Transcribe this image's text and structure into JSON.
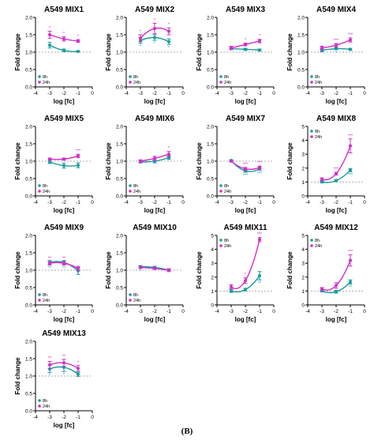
{
  "figure_label": "(B)",
  "colors": {
    "s8h": "#1a9c9c",
    "s24h": "#d12fc8",
    "ref": "#999999"
  },
  "chart_data": [
    {
      "type": "line",
      "title": "A549 MIX1",
      "xlabel": "log [fc]",
      "ylabel": "Fold change",
      "xlim": [
        -4,
        0
      ],
      "ylim": [
        0,
        2.0
      ],
      "xticks": [
        -4,
        -3,
        -2,
        -1,
        0
      ],
      "yticks": [
        0.0,
        0.5,
        1.0,
        1.5,
        2.0
      ],
      "ytick_labels": [
        "0.0",
        "0.5",
        "1.0",
        "1.5",
        "2.0"
      ],
      "legend_position": "bottom-left",
      "ref_line": 1,
      "series": [
        {
          "name": "8h",
          "x": [
            -3,
            -2,
            -1
          ],
          "y": [
            1.2,
            1.05,
            1.02
          ],
          "err": [
            0.08,
            0.04,
            0.02
          ],
          "sig": [
            "",
            "",
            ""
          ]
        },
        {
          "name": "24h",
          "x": [
            -3,
            -2,
            -1
          ],
          "y": [
            1.5,
            1.38,
            1.32
          ],
          "err": [
            0.1,
            0.06,
            0.04
          ],
          "sig": [
            "*",
            "*",
            "*"
          ]
        }
      ]
    },
    {
      "type": "line",
      "title": "A549 MIX2",
      "xlabel": "log [fc]",
      "ylabel": "Fold change",
      "xlim": [
        -4,
        0
      ],
      "ylim": [
        0,
        2.0
      ],
      "xticks": [
        -4,
        -3,
        -2,
        -1,
        0
      ],
      "yticks": [
        0.0,
        0.5,
        1.0,
        1.5,
        2.0
      ],
      "ytick_labels": [
        "0.0",
        "0.5",
        "1.0",
        "1.5",
        "2.0"
      ],
      "legend_position": "bottom-left",
      "ref_line": 1,
      "series": [
        {
          "name": "8h",
          "x": [
            -3,
            -2,
            -1
          ],
          "y": [
            1.33,
            1.42,
            1.3
          ],
          "err": [
            0.08,
            0.08,
            0.08
          ],
          "sig": [
            "*",
            "*",
            "*"
          ]
        },
        {
          "name": "24h",
          "x": [
            -3,
            -2,
            -1
          ],
          "y": [
            1.4,
            1.68,
            1.6
          ],
          "err": [
            0.1,
            0.15,
            0.1
          ],
          "sig": [
            "*",
            "*",
            "*"
          ]
        }
      ]
    },
    {
      "type": "line",
      "title": "A549 MIX3",
      "xlabel": "log [fc]",
      "ylabel": "Fold change",
      "xlim": [
        -4,
        0
      ],
      "ylim": [
        0,
        2.0
      ],
      "xticks": [
        -4,
        -3,
        -2,
        -1,
        0
      ],
      "yticks": [
        0.0,
        0.5,
        1.0,
        1.5,
        2.0
      ],
      "ytick_labels": [
        "0.0",
        "0.5",
        "1.0",
        "1.5",
        "2.0"
      ],
      "legend_position": "bottom-left",
      "ref_line": 1,
      "series": [
        {
          "name": "8h",
          "x": [
            -3,
            -2,
            -1
          ],
          "y": [
            1.1,
            1.08,
            1.06
          ],
          "err": [
            0.03,
            0.03,
            0.03
          ],
          "sig": [
            "",
            "",
            ""
          ]
        },
        {
          "name": "24h",
          "x": [
            -3,
            -2,
            -1
          ],
          "y": [
            1.12,
            1.22,
            1.32
          ],
          "err": [
            0.05,
            0.04,
            0.05
          ],
          "sig": [
            "",
            "*",
            "*"
          ]
        }
      ]
    },
    {
      "type": "line",
      "title": "A549 MIX4",
      "xlabel": "log [fc]",
      "ylabel": "Fold change",
      "xlim": [
        -4,
        0
      ],
      "ylim": [
        0,
        2.0
      ],
      "xticks": [
        -4,
        -3,
        -2,
        -1,
        0
      ],
      "yticks": [
        0.0,
        0.5,
        1.0,
        1.5,
        2.0
      ],
      "ytick_labels": [
        "0.0",
        "0.5",
        "1.0",
        "1.5",
        "2.0"
      ],
      "legend_position": "bottom-left",
      "ref_line": 1,
      "series": [
        {
          "name": "8h",
          "x": [
            -3,
            -2,
            -1
          ],
          "y": [
            1.05,
            1.1,
            1.08
          ],
          "err": [
            0.04,
            0.03,
            0.03
          ],
          "sig": [
            "",
            "*",
            ""
          ]
        },
        {
          "name": "24h",
          "x": [
            -3,
            -2,
            -1
          ],
          "y": [
            1.12,
            1.2,
            1.35
          ],
          "err": [
            0.05,
            0.05,
            0.06
          ],
          "sig": [
            "",
            "***",
            "***"
          ]
        }
      ]
    },
    {
      "type": "line",
      "title": "A549 MIX5",
      "xlabel": "log [fc]",
      "ylabel": "Fold change",
      "xlim": [
        -4,
        0
      ],
      "ylim": [
        0,
        2.0
      ],
      "xticks": [
        -4,
        -3,
        -2,
        -1,
        0
      ],
      "yticks": [
        0.0,
        0.5,
        1.0,
        1.5,
        2.0
      ],
      "ytick_labels": [
        "0.0",
        "0.5",
        "1.0",
        "1.5",
        "2.0"
      ],
      "legend_position": "bottom-left",
      "ref_line": 1,
      "series": [
        {
          "name": "8h",
          "x": [
            -3,
            -2,
            -1
          ],
          "y": [
            0.98,
            0.87,
            0.88
          ],
          "err": [
            0.05,
            0.07,
            0.07
          ],
          "sig": [
            "",
            "",
            ""
          ]
        },
        {
          "name": "24h",
          "x": [
            -3,
            -2,
            -1
          ],
          "y": [
            1.06,
            1.06,
            1.15
          ],
          "err": [
            0.03,
            0.03,
            0.05
          ],
          "sig": [
            "",
            "",
            "***"
          ]
        }
      ]
    },
    {
      "type": "line",
      "title": "A549 MIX6",
      "xlabel": "log [fc]",
      "ylabel": "Fold change",
      "xlim": [
        -4,
        0
      ],
      "ylim": [
        0,
        2.0
      ],
      "xticks": [
        -4,
        -3,
        -2,
        -1,
        0
      ],
      "yticks": [
        0.0,
        0.5,
        1.0,
        1.5,
        2.0
      ],
      "ytick_labels": [
        "0.0",
        "0.5",
        "1.0",
        "1.5",
        "2.0"
      ],
      "legend_position": "bottom-left",
      "ref_line": 1,
      "series": [
        {
          "name": "8h",
          "x": [
            -3,
            -2,
            -1
          ],
          "y": [
            0.98,
            1.0,
            1.1
          ],
          "err": [
            0.03,
            0.05,
            0.05
          ],
          "sig": [
            "",
            "",
            ""
          ]
        },
        {
          "name": "24h",
          "x": [
            -3,
            -2,
            -1
          ],
          "y": [
            1.0,
            1.08,
            1.2
          ],
          "err": [
            0.04,
            0.06,
            0.08
          ],
          "sig": [
            "",
            "",
            "*"
          ]
        }
      ]
    },
    {
      "type": "line",
      "title": "A549 MIX7",
      "xlabel": "log [fc]",
      "ylabel": "Fold change",
      "xlim": [
        -4,
        0
      ],
      "ylim": [
        0,
        2.0
      ],
      "xticks": [
        -4,
        -3,
        -2,
        -1,
        0
      ],
      "yticks": [
        0.0,
        0.5,
        1.0,
        1.5,
        2.0
      ],
      "ytick_labels": [
        "0.0",
        "0.5",
        "1.0",
        "1.5",
        "2.0"
      ],
      "legend_position": "bottom-left",
      "ref_line": 1,
      "series": [
        {
          "name": "8h",
          "x": [
            -3,
            -2,
            -1
          ],
          "y": [
            1.02,
            0.72,
            0.78
          ],
          "err": [
            0.02,
            0.04,
            0.04
          ],
          "sig": [
            "",
            "***",
            "***"
          ]
        },
        {
          "name": "24h",
          "x": [
            -3,
            -2,
            -1
          ],
          "y": [
            1.0,
            0.78,
            0.82
          ],
          "err": [
            0.02,
            0.04,
            0.04
          ],
          "sig": [
            "",
            "***",
            "***"
          ]
        }
      ]
    },
    {
      "type": "line",
      "title": "A549 MIX8",
      "xlabel": "log [fc]",
      "ylabel": "Fold change",
      "xlim": [
        -4,
        0
      ],
      "ylim": [
        0,
        5
      ],
      "xticks": [
        -4,
        -3,
        -2,
        -1,
        0
      ],
      "yticks": [
        0,
        1,
        2,
        3,
        4,
        5
      ],
      "ytick_labels": [
        "0",
        "1",
        "2",
        "3",
        "4",
        "5"
      ],
      "legend_position": "top-left",
      "ref_line": 1,
      "series": [
        {
          "name": "8h",
          "x": [
            -3,
            -2,
            -1
          ],
          "y": [
            1.0,
            1.1,
            1.85
          ],
          "err": [
            0.05,
            0.08,
            0.12
          ],
          "sig": [
            "",
            "",
            "***"
          ]
        },
        {
          "name": "24h",
          "x": [
            -3,
            -2,
            -1
          ],
          "y": [
            1.2,
            1.6,
            3.6
          ],
          "err": [
            0.1,
            0.1,
            0.5
          ],
          "sig": [
            "",
            "***",
            "***"
          ]
        }
      ]
    },
    {
      "type": "line",
      "title": "A549 MIX9",
      "xlabel": "log [fc]",
      "ylabel": "Fold change",
      "xlim": [
        -4,
        0
      ],
      "ylim": [
        0,
        2.0
      ],
      "xticks": [
        -4,
        -3,
        -2,
        -1,
        0
      ],
      "yticks": [
        0.0,
        0.5,
        1.0,
        1.5,
        2.0
      ],
      "ytick_labels": [
        "0.0",
        "0.5",
        "1.0",
        "1.5",
        "2.0"
      ],
      "legend_position": "bottom-left",
      "ref_line": 1,
      "series": [
        {
          "name": "8h",
          "x": [
            -3,
            -2,
            -1
          ],
          "y": [
            1.22,
            1.22,
            0.98
          ],
          "err": [
            0.06,
            0.06,
            0.1
          ],
          "sig": [
            "**",
            "**",
            ""
          ]
        },
        {
          "name": "24h",
          "x": [
            -3,
            -2,
            -1
          ],
          "y": [
            1.2,
            1.2,
            1.05
          ],
          "err": [
            0.05,
            0.05,
            0.06
          ],
          "sig": [
            "**",
            "**",
            ""
          ]
        }
      ]
    },
    {
      "type": "line",
      "title": "A549 MIX10",
      "xlabel": "log [fc]",
      "ylabel": "Fold change",
      "xlim": [
        -4,
        0
      ],
      "ylim": [
        0,
        2.0
      ],
      "xticks": [
        -4,
        -3,
        -2,
        -1,
        0
      ],
      "yticks": [
        0.0,
        0.5,
        1.0,
        1.5,
        2.0
      ],
      "ytick_labels": [
        "0.0",
        "0.5",
        "1.0",
        "1.5",
        "2.0"
      ],
      "legend_position": "bottom-left",
      "ref_line": 1,
      "series": [
        {
          "name": "8h",
          "x": [
            -3,
            -2,
            -1
          ],
          "y": [
            1.1,
            1.08,
            1.0
          ],
          "err": [
            0.03,
            0.03,
            0.04
          ],
          "sig": [
            "*",
            "",
            ""
          ]
        },
        {
          "name": "24h",
          "x": [
            -3,
            -2,
            -1
          ],
          "y": [
            1.08,
            1.05,
            1.0
          ],
          "err": [
            0.03,
            0.03,
            0.04
          ],
          "sig": [
            "",
            "",
            ""
          ]
        }
      ]
    },
    {
      "type": "line",
      "title": "A549 MIX11",
      "xlabel": "log [fc]",
      "ylabel": "Fold change",
      "xlim": [
        -4,
        0
      ],
      "ylim": [
        0,
        5
      ],
      "xticks": [
        -4,
        -3,
        -2,
        -1,
        0
      ],
      "yticks": [
        0,
        1,
        2,
        3,
        4,
        5
      ],
      "ytick_labels": [
        "0",
        "1",
        "2",
        "3",
        "4",
        "5"
      ],
      "legend_position": "top-left",
      "ref_line": 1,
      "series": [
        {
          "name": "8h",
          "x": [
            -3,
            -2,
            -1
          ],
          "y": [
            1.0,
            1.1,
            2.1
          ],
          "err": [
            0.1,
            0.1,
            0.3
          ],
          "sig": [
            "",
            "",
            "**"
          ]
        },
        {
          "name": "24h",
          "x": [
            -3,
            -2,
            -1
          ],
          "y": [
            1.3,
            1.75,
            4.7
          ],
          "err": [
            0.15,
            0.2,
            0.15
          ],
          "sig": [
            "",
            "*",
            "***"
          ]
        }
      ]
    },
    {
      "type": "line",
      "title": "A549 MIX12",
      "xlabel": "log [fc]",
      "ylabel": "Fold change",
      "xlim": [
        -4,
        0
      ],
      "ylim": [
        0,
        5
      ],
      "xticks": [
        -4,
        -3,
        -2,
        -1,
        0
      ],
      "yticks": [
        0,
        1,
        2,
        3,
        4,
        5
      ],
      "ytick_labels": [
        "0",
        "1",
        "2",
        "3",
        "4",
        "5"
      ],
      "legend_position": "top-left",
      "ref_line": 1,
      "series": [
        {
          "name": "8h",
          "x": [
            -3,
            -2,
            -1
          ],
          "y": [
            1.0,
            0.95,
            1.65
          ],
          "err": [
            0.05,
            0.1,
            0.15
          ],
          "sig": [
            "",
            "",
            "**"
          ]
        },
        {
          "name": "24h",
          "x": [
            -3,
            -2,
            -1
          ],
          "y": [
            1.15,
            1.4,
            3.2
          ],
          "err": [
            0.1,
            0.2,
            0.4
          ],
          "sig": [
            "",
            "",
            "***"
          ]
        }
      ]
    },
    {
      "type": "line",
      "title": "A549 MIX13",
      "xlabel": "log [fc]",
      "ylabel": "Fold change",
      "xlim": [
        -4,
        0
      ],
      "ylim": [
        0,
        2.0
      ],
      "xticks": [
        -4,
        -3,
        -2,
        -1,
        0
      ],
      "yticks": [
        0.0,
        0.5,
        1.0,
        1.5,
        2.0
      ],
      "ytick_labels": [
        "0.0",
        "0.5",
        "1.0",
        "1.5",
        "2.0"
      ],
      "legend_position": "bottom-left",
      "ref_line": 1,
      "series": [
        {
          "name": "8h",
          "x": [
            -3,
            -2,
            -1
          ],
          "y": [
            1.2,
            1.25,
            1.05
          ],
          "err": [
            0.1,
            0.12,
            0.06
          ],
          "sig": [
            "*",
            "*",
            ""
          ]
        },
        {
          "name": "24h",
          "x": [
            -3,
            -2,
            -1
          ],
          "y": [
            1.32,
            1.38,
            1.22
          ],
          "err": [
            0.1,
            0.1,
            0.08
          ],
          "sig": [
            "**",
            "**",
            "*"
          ]
        }
      ]
    }
  ]
}
